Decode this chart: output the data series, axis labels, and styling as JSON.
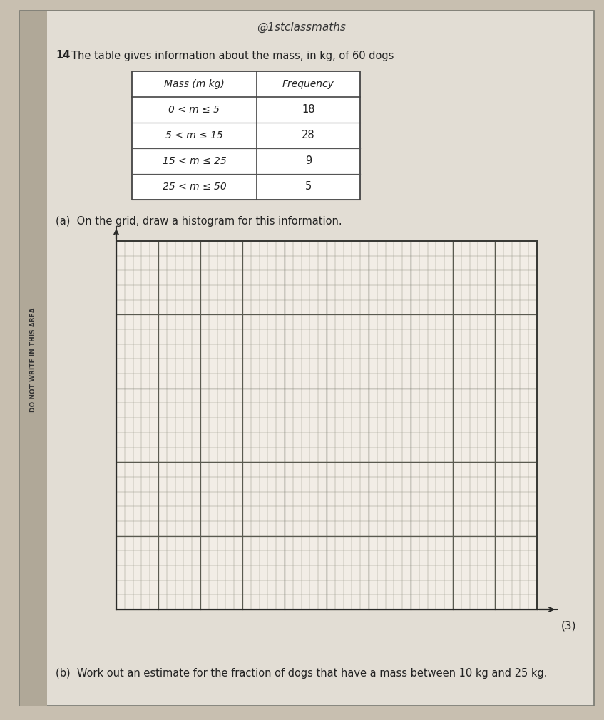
{
  "title_twitter": "@1stclassmaths",
  "question_number": "14",
  "question_text": "The table gives information about the mass, in kg, of 60 dogs",
  "table_header": [
    "Mass (m kg)",
    "Frequency"
  ],
  "table_rows": [
    [
      "0 < m ≤ 5",
      "18"
    ],
    [
      "5 < m ≤ 15",
      "28"
    ],
    [
      "15 < m ≤ 25",
      "9"
    ],
    [
      "25 < m ≤ 50",
      "5"
    ]
  ],
  "part_a_text": "(a)  On the grid, draw a histogram for this information.",
  "part_a_marks": "(3)",
  "part_b_text": "(b)  Work out an estimate for the fraction of dogs that have a mass between 10 kg and 25 kg.",
  "bg_color": "#c8bfb0",
  "paper_color": "#e2ddd4",
  "grid_bg_color": "#f0ece4",
  "grid_line_minor_color": "#909090",
  "grid_line_major_color": "#606060",
  "table_border_color": "#444444",
  "sidebar_bg": "#b0a898",
  "sidebar_text": "DO NOT WRITE IN THIS AREA",
  "text_color": "#222222"
}
